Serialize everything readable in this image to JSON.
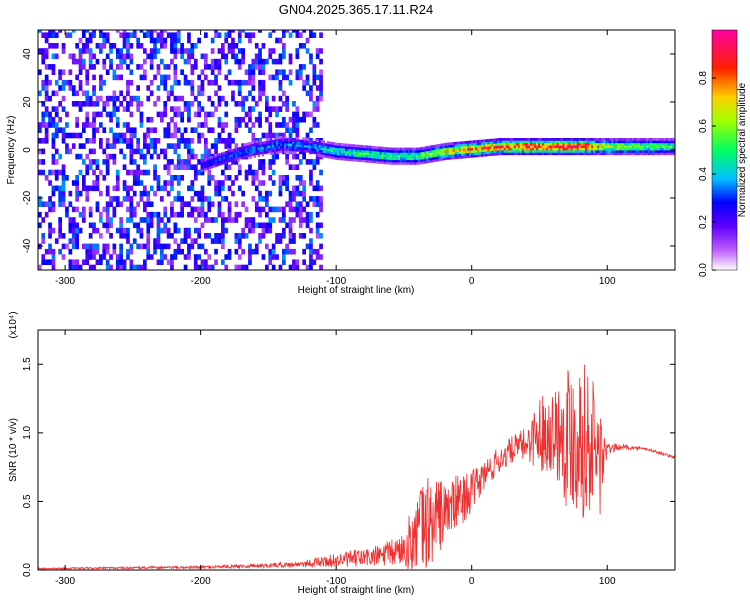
{
  "title": "GN04.2025.365.17.11.R24",
  "chart_data": [
    {
      "type": "heatmap",
      "xlabel": "Height of straight line (km)",
      "ylabel": "Frequency (Hz)",
      "xlim": [
        -320,
        150
      ],
      "ylim": [
        -50,
        50
      ],
      "xticks": [
        -300,
        -200,
        -100,
        0,
        100
      ],
      "yticks": [
        -40,
        -20,
        0,
        20,
        40
      ],
      "colorbar": {
        "label": "Normalized spectral amplitude",
        "range": [
          0,
          1
        ],
        "ticks": [
          0.0,
          0.2,
          0.4,
          0.6,
          0.8
        ],
        "colormap": [
          "#ffffff",
          "#8000ff",
          "#0000ff",
          "#00ffff",
          "#00ff00",
          "#ffff00",
          "#ff0000",
          "#ff00ff"
        ]
      },
      "noise_region": {
        "x_from": -320,
        "x_to": -110,
        "level": 0.3
      },
      "signal_track": [
        {
          "x": -200,
          "f": -7,
          "amp": 0.25
        },
        {
          "x": -180,
          "f": -3,
          "amp": 0.3
        },
        {
          "x": -160,
          "f": 0,
          "amp": 0.35
        },
        {
          "x": -140,
          "f": 2,
          "amp": 0.35
        },
        {
          "x": -120,
          "f": 1,
          "amp": 0.35
        },
        {
          "x": -100,
          "f": -1,
          "amp": 0.45
        },
        {
          "x": -80,
          "f": -2,
          "amp": 0.5
        },
        {
          "x": -60,
          "f": -3,
          "amp": 0.5
        },
        {
          "x": -40,
          "f": -3,
          "amp": 0.55
        },
        {
          "x": -20,
          "f": -1,
          "amp": 0.65
        },
        {
          "x": 0,
          "f": 0,
          "amp": 0.75
        },
        {
          "x": 20,
          "f": 1,
          "amp": 0.8
        },
        {
          "x": 40,
          "f": 1,
          "amp": 0.85
        },
        {
          "x": 60,
          "f": 1,
          "amp": 0.85
        },
        {
          "x": 80,
          "f": 1,
          "amp": 0.9
        },
        {
          "x": 100,
          "f": 1,
          "amp": 0.6
        },
        {
          "x": 150,
          "f": 1,
          "amp": 0.5
        }
      ]
    },
    {
      "type": "line",
      "xlabel": "Height of straight line (km)",
      "ylabel": "SNR (10 * v/v)",
      "yscale_label": "(x10⁴)",
      "xlim": [
        -320,
        150
      ],
      "ylim": [
        0,
        1.75
      ],
      "xticks": [
        -300,
        -200,
        -100,
        0,
        100
      ],
      "yticks": [
        "0.0",
        "0.5",
        "1.0",
        "1.5"
      ],
      "color": "#ee3030",
      "envelope": {
        "x": [
          -320,
          -200,
          -130,
          -110,
          -90,
          -70,
          -60,
          -50,
          -40,
          -30,
          -20,
          -10,
          0,
          10,
          20,
          30,
          40,
          50,
          60,
          70,
          80,
          90,
          95,
          100,
          110,
          130,
          150
        ],
        "mean": [
          0.01,
          0.02,
          0.04,
          0.06,
          0.08,
          0.1,
          0.12,
          0.16,
          0.25,
          0.36,
          0.42,
          0.5,
          0.57,
          0.7,
          0.8,
          0.88,
          0.92,
          1.0,
          1.02,
          1.0,
          0.98,
          0.9,
          0.8,
          0.88,
          0.9,
          0.88,
          0.82
        ],
        "spread": [
          0.005,
          0.01,
          0.02,
          0.04,
          0.06,
          0.08,
          0.1,
          0.12,
          0.35,
          0.4,
          0.22,
          0.2,
          0.15,
          0.12,
          0.1,
          0.1,
          0.12,
          0.28,
          0.3,
          0.55,
          0.6,
          0.5,
          0.45,
          0.04,
          0.02,
          0.01,
          0.01
        ]
      }
    }
  ]
}
